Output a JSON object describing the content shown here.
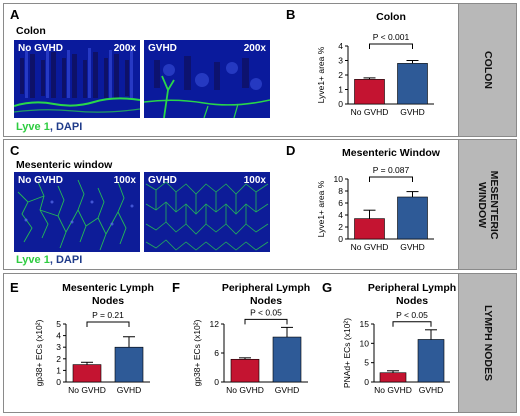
{
  "panels": {
    "A": {
      "label": "A",
      "title": "Colon",
      "left_label": "No GVHD",
      "left_mag": "200x",
      "right_label": "GVHD",
      "right_mag": "200x"
    },
    "C": {
      "label": "C",
      "title": "Mesenteric window",
      "left_label": "No GVHD",
      "left_mag": "100x",
      "right_label": "GVHD",
      "right_mag": "100x"
    }
  },
  "legend": {
    "lyve": "Lyve 1",
    "sep": ",",
    "dapi": "DAPI"
  },
  "sides": {
    "colon": "COLON",
    "mesenteric_line1": "MESENTERIC",
    "mesenteric_line2": "WINDOW",
    "lymph": "LYMPH NODES"
  },
  "colors": {
    "no_gvhd": "#c41431",
    "gvhd": "#2e5a97",
    "micro_bg": "#00138c",
    "fluor_green": "#29d64a"
  },
  "chart_data": [
    {
      "id": "B",
      "label": "B",
      "type": "bar",
      "title": "Colon",
      "categories": [
        "No GVHD",
        "GVHD"
      ],
      "values": [
        1.7,
        2.8
      ],
      "errors": [
        0.1,
        0.2
      ],
      "ylabel": "Lyve1+ area %",
      "ylim": [
        0,
        4
      ],
      "yticks": [
        "0",
        "1",
        "2",
        "3",
        "4"
      ],
      "annotation": "P < 0.001",
      "colors": [
        "#c41431",
        "#2e5a97"
      ]
    },
    {
      "id": "D",
      "label": "D",
      "type": "bar",
      "title": "Mesenteric Window",
      "categories": [
        "No GVHD",
        "GVHD"
      ],
      "values": [
        3.4,
        7.0
      ],
      "errors": [
        1.4,
        0.9
      ],
      "ylabel": "Lyve1+ area %",
      "ylim": [
        0,
        10
      ],
      "yticks": [
        "0",
        "2",
        "4",
        "6",
        "8",
        "10"
      ],
      "annotation": "P = 0.087",
      "colors": [
        "#c41431",
        "#2e5a97"
      ]
    },
    {
      "id": "E",
      "label": "E",
      "type": "bar",
      "title": [
        "Mesenteric Lymph",
        "Nodes"
      ],
      "categories": [
        "No GVHD",
        "GVHD"
      ],
      "values": [
        1.5,
        3.0
      ],
      "errors": [
        0.2,
        0.9
      ],
      "ylabel": "gp38+ ECs (x10²)",
      "ylim": [
        0,
        5
      ],
      "yticks": [
        "0",
        "1",
        "2",
        "3",
        "4",
        "5"
      ],
      "annotation": "P = 0.21",
      "colors": [
        "#c41431",
        "#2e5a97"
      ]
    },
    {
      "id": "F",
      "label": "F",
      "type": "bar",
      "title": [
        "Peripheral Lymph",
        "Nodes"
      ],
      "categories": [
        "No GVHD",
        "GVHD"
      ],
      "values": [
        4.7,
        9.3
      ],
      "errors": [
        0.3,
        2.0
      ],
      "ylabel": "gp38+ ECs (x10²)",
      "ylim": [
        0,
        12
      ],
      "yticks": [
        "0",
        "6",
        "12"
      ],
      "annotation": "P < 0.05",
      "colors": [
        "#c41431",
        "#2e5a97"
      ]
    },
    {
      "id": "G",
      "label": "G",
      "type": "bar",
      "title": [
        "Peripheral Lymph",
        "Nodes"
      ],
      "categories": [
        "No GVHD",
        "GVHD"
      ],
      "values": [
        2.4,
        11.0
      ],
      "errors": [
        0.5,
        2.5
      ],
      "ylabel": "PNAd+ ECs (x10²)",
      "ylim": [
        0,
        15
      ],
      "yticks": [
        "0",
        "5",
        "10",
        "15"
      ],
      "annotation": "P < 0.05",
      "colors": [
        "#c41431",
        "#2e5a97"
      ]
    }
  ]
}
